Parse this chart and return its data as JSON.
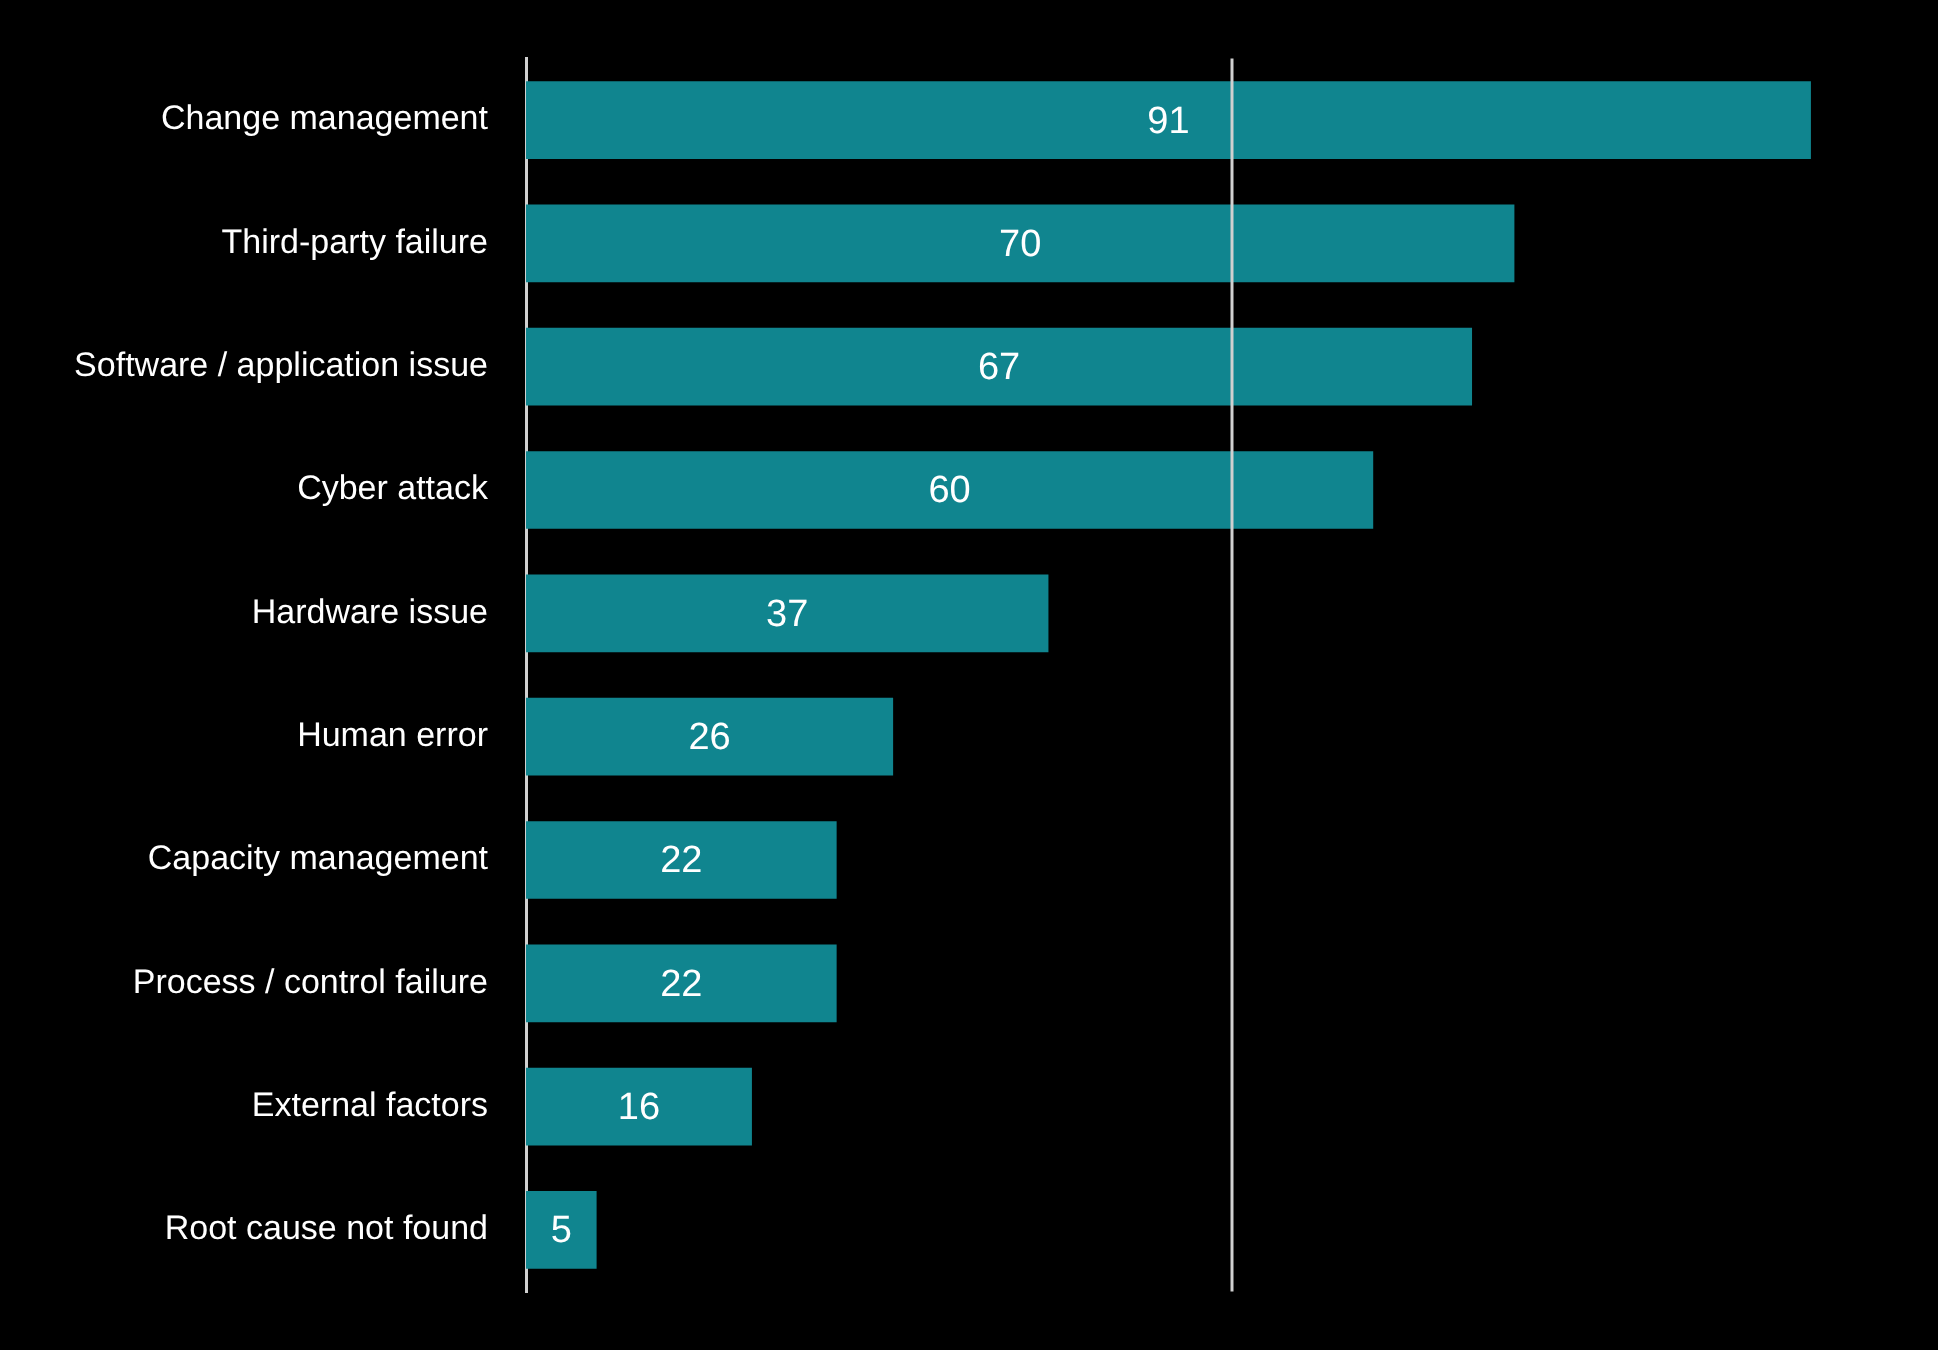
{
  "chart_data": {
    "type": "bar",
    "orientation": "horizontal",
    "categories": [
      "Change management",
      "Third-party failure",
      "Software / application issue",
      "Cyber attack",
      "Hardware issue",
      "Human error",
      "Capacity management",
      "Process / control failure",
      "External factors",
      "Root cause not found"
    ],
    "values": [
      91,
      70,
      67,
      60,
      37,
      26,
      22,
      22,
      16,
      5
    ],
    "color": "#10858f",
    "ref_lines": [
      {
        "axis": "x",
        "value": 50,
        "color": "#d0d0d0"
      }
    ],
    "tick_labels": "y",
    "data_labels": true
  }
}
